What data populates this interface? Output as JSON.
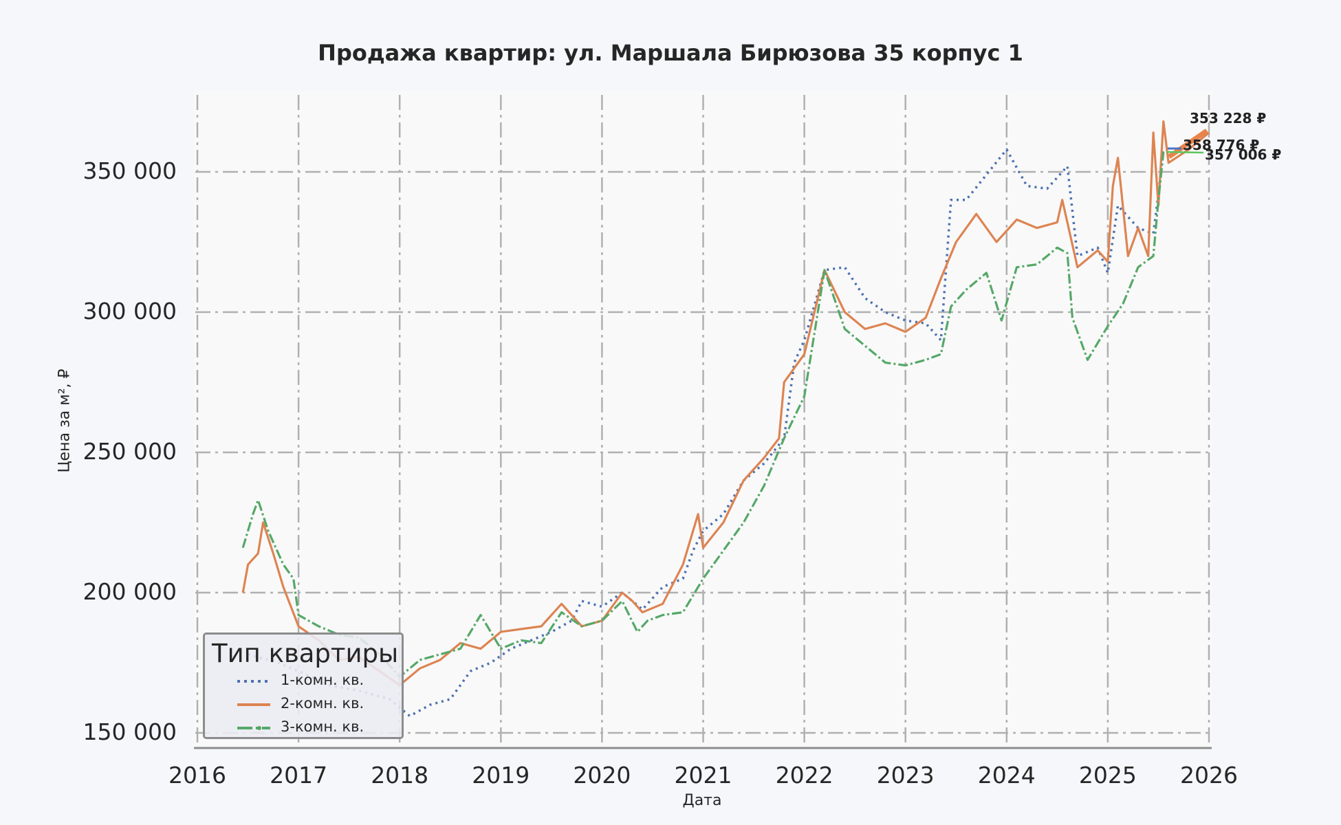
{
  "chart": {
    "title": "Продажа квартир: ул. Маршала Бирюзова 35 корпус 1",
    "xlabel": "Дата",
    "ylabel": "Цена за м², ₽",
    "x_ticks": [
      "2016",
      "2017",
      "2018",
      "2019",
      "2020",
      "2021",
      "2022",
      "2023",
      "2024",
      "2025",
      "2026"
    ],
    "y_ticks": [
      "150 000",
      "200 000",
      "250 000",
      "300 000",
      "350 000"
    ],
    "legend": {
      "title": "Тип квартиры",
      "items": [
        {
          "label": "1-комн. кв.",
          "color": "#4c72b0",
          "style": "dotted"
        },
        {
          "label": "2-комн. кв.",
          "color": "#dd8452",
          "style": "solid"
        },
        {
          "label": "3-комн. кв.",
          "color": "#55a868",
          "style": "dashdot"
        }
      ]
    },
    "annotations": [
      {
        "text": "353 228 ₽",
        "color": "#e8844a"
      },
      {
        "text": "358 776 ₽",
        "color": "#4a72c4"
      },
      {
        "text": "357 006 ₽",
        "color": "#5cc55c"
      }
    ]
  },
  "chart_data": {
    "type": "line",
    "title": "Продажа квартир: ул. Маршала Бирюзова 35 корпус 1",
    "xlabel": "Дата",
    "ylabel": "Цена за м², ₽",
    "xlim": [
      2016,
      2026
    ],
    "ylim": [
      144600,
      378900
    ],
    "grid": true,
    "legend_position": "lower left",
    "legend_title": "Тип квартиры",
    "series": [
      {
        "name": "1-комн. кв.",
        "color": "#4c72b0",
        "linestyle": "dotted",
        "x": [
          2016.5,
          2016.8,
          2017.0,
          2017.3,
          2017.6,
          2017.9,
          2018.1,
          2018.3,
          2018.5,
          2018.7,
          2018.9,
          2019.1,
          2019.3,
          2019.5,
          2019.7,
          2019.8,
          2020.0,
          2020.2,
          2020.4,
          2020.6,
          2020.8,
          2020.9,
          2021.0,
          2021.2,
          2021.4,
          2021.6,
          2021.8,
          2021.9,
          2022.0,
          2022.2,
          2022.4,
          2022.6,
          2022.8,
          2023.0,
          2023.2,
          2023.35,
          2023.45,
          2023.6,
          2023.8,
          2024.0,
          2024.2,
          2024.4,
          2024.6,
          2024.7,
          2024.9,
          2025.0,
          2025.1,
          2025.3,
          2025.45,
          2025.5,
          2025.55
        ],
        "y": [
          178000,
          175000,
          172000,
          167000,
          165000,
          162000,
          156000,
          160000,
          162000,
          172000,
          175000,
          180000,
          183000,
          186000,
          190000,
          197000,
          195000,
          200000,
          194000,
          202000,
          205000,
          215000,
          222000,
          228000,
          240000,
          246000,
          255000,
          282000,
          290000,
          315000,
          316000,
          305000,
          300000,
          297000,
          296000,
          290000,
          340000,
          340000,
          349000,
          358000,
          345000,
          344000,
          352000,
          320000,
          323000,
          314000,
          338000,
          330000,
          328000,
          342000,
          358776
        ]
      },
      {
        "name": "2-комн. кв.",
        "color": "#dd8452",
        "linestyle": "solid",
        "x": [
          2016.45,
          2016.5,
          2016.6,
          2016.65,
          2016.75,
          2016.85,
          2017.0,
          2017.2,
          2017.4,
          2017.6,
          2017.8,
          2018.0,
          2018.2,
          2018.4,
          2018.6,
          2018.8,
          2019.0,
          2019.2,
          2019.4,
          2019.6,
          2019.8,
          2020.0,
          2020.2,
          2020.3,
          2020.4,
          2020.6,
          2020.8,
          2020.95,
          2021.0,
          2021.2,
          2021.4,
          2021.6,
          2021.75,
          2021.8,
          2021.9,
          2022.0,
          2022.2,
          2022.4,
          2022.6,
          2022.8,
          2023.0,
          2023.2,
          2023.35,
          2023.5,
          2023.7,
          2023.9,
          2024.1,
          2024.3,
          2024.5,
          2024.55,
          2024.7,
          2024.9,
          2025.0,
          2025.05,
          2025.1,
          2025.2,
          2025.3,
          2025.4,
          2025.45,
          2025.5,
          2025.55,
          2025.6,
          2025.8,
          2026.0
        ],
        "y": [
          200000,
          210000,
          214000,
          225000,
          214000,
          202000,
          188000,
          183000,
          176000,
          177000,
          172000,
          167000,
          173000,
          176000,
          182000,
          180000,
          186000,
          187000,
          188000,
          196000,
          188000,
          190000,
          200000,
          197000,
          193000,
          196000,
          210000,
          228000,
          216000,
          225000,
          240000,
          248000,
          255000,
          275000,
          280000,
          285000,
          315000,
          300000,
          294000,
          296000,
          293000,
          298000,
          312000,
          325000,
          335000,
          325000,
          333000,
          330000,
          332000,
          340000,
          316000,
          322000,
          318000,
          345000,
          355000,
          320000,
          330000,
          320000,
          364000,
          338000,
          368000,
          353228,
          358000,
          364000
        ]
      },
      {
        "name": "3-комн. кв.",
        "color": "#55a868",
        "linestyle": "dashdot",
        "x": [
          2016.45,
          2016.55,
          2016.6,
          2016.7,
          2016.85,
          2016.95,
          2017.0,
          2017.2,
          2017.4,
          2017.6,
          2017.8,
          2018.0,
          2018.2,
          2018.4,
          2018.6,
          2018.8,
          2019.0,
          2019.2,
          2019.4,
          2019.6,
          2019.8,
          2020.0,
          2020.2,
          2020.35,
          2020.45,
          2020.6,
          2020.8,
          2021.0,
          2021.2,
          2021.4,
          2021.6,
          2021.8,
          2022.0,
          2022.2,
          2022.4,
          2022.6,
          2022.8,
          2023.0,
          2023.2,
          2023.35,
          2023.45,
          2023.6,
          2023.8,
          2023.95,
          2024.1,
          2024.3,
          2024.5,
          2024.6,
          2024.65,
          2024.8,
          2025.0,
          2025.15,
          2025.3,
          2025.45,
          2025.5,
          2025.55
        ],
        "y": [
          216000,
          228000,
          233000,
          222000,
          210000,
          205000,
          192000,
          188000,
          185000,
          184000,
          178000,
          170000,
          176000,
          178000,
          180000,
          192000,
          180000,
          183000,
          182000,
          193000,
          188000,
          190000,
          197000,
          186000,
          190000,
          192000,
          193000,
          205000,
          215000,
          225000,
          238000,
          255000,
          270000,
          315000,
          294000,
          288000,
          282000,
          281000,
          283000,
          285000,
          302000,
          308000,
          314000,
          297000,
          316000,
          317000,
          323000,
          321000,
          298000,
          283000,
          295000,
          303000,
          316000,
          320000,
          340000,
          357006
        ]
      }
    ],
    "annotations": [
      {
        "text": "353 228 ₽",
        "series": "2-комн. кв.",
        "value": 353228
      },
      {
        "text": "358 776 ₽",
        "series": "1-комн. кв.",
        "value": 358776
      },
      {
        "text": "357 006 ₽",
        "series": "3-комн. кв.",
        "value": 357006
      }
    ]
  }
}
